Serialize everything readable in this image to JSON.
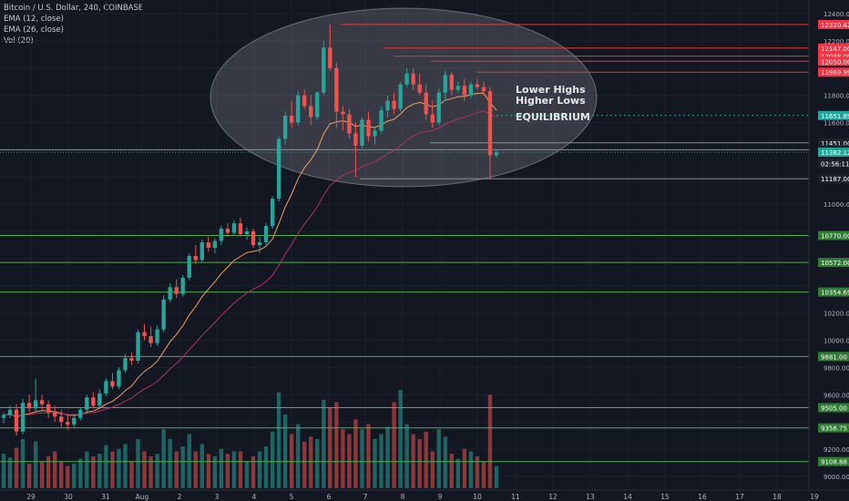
{
  "legend": {
    "symbol": "Bitcoin / U.S. Dollar, 240, COINBASE",
    "ema12": "EMA (12, close)",
    "ema26": "EMA (26, close)",
    "vol": "Vol (20)"
  },
  "chart_data": {
    "type": "candlestick",
    "title": "Bitcoin / U.S. Dollar, 240, COINBASE",
    "xlabel": "",
    "ylabel": "",
    "ylim": [
      8960,
      12440
    ],
    "x_ticks": [
      "29",
      "30",
      "31",
      "Aug",
      "2",
      "3",
      "4",
      "5",
      "6",
      "7",
      "8",
      "9",
      "10",
      "11",
      "12",
      "13",
      "14",
      "15",
      "16",
      "17",
      "18",
      "19"
    ],
    "y_ticks": [
      9000,
      9200,
      9400,
      9600,
      9800,
      10000,
      10200,
      10400,
      10600,
      10800,
      11000,
      11200,
      11400,
      11600,
      11800,
      12000,
      12200,
      12400
    ],
    "price_tags": [
      {
        "label": "12320.42",
        "value": 12320.42,
        "color": "#f23645"
      },
      {
        "label": "12147.00",
        "value": 12147.0,
        "color": "#f23645"
      },
      {
        "label": "12088.00",
        "value": 12088.0,
        "color": "#f23645"
      },
      {
        "label": "12050.00",
        "value": 12050.0,
        "color": "#f23645"
      },
      {
        "label": "11969.99",
        "value": 11969.99,
        "color": "#f23645"
      },
      {
        "label": "11651.89",
        "value": 11651.89,
        "color": "#26a69a"
      },
      {
        "label": "11451.00",
        "value": 11451.0,
        "color": "#1e222d"
      },
      {
        "label": "11400.00",
        "value": 11400.0,
        "color": "#1e222d"
      },
      {
        "label": "11382.12",
        "value": 11382.12,
        "color": "#26a69a"
      },
      {
        "label": "02:56:11",
        "value": 11300,
        "color": "#1e222d"
      },
      {
        "label": "11187.00",
        "value": 11187.0,
        "color": "#1e222d"
      },
      {
        "label": "10770.00",
        "value": 10770.0,
        "color": "#2e7d32"
      },
      {
        "label": "10572.00",
        "value": 10572.0,
        "color": "#2e7d32"
      },
      {
        "label": "10354.69",
        "value": 10354.69,
        "color": "#2e7d32"
      },
      {
        "label": "9881.00",
        "value": 9881.0,
        "color": "#2e7d32"
      },
      {
        "label": "9505.00",
        "value": 9505.0,
        "color": "#2e7d32"
      },
      {
        "label": "9356.75",
        "value": 9356.75,
        "color": "#2e7d32"
      },
      {
        "label": "9108.88",
        "value": 9108.88,
        "color": "#2e7d32"
      }
    ],
    "support_levels": [
      10770,
      10572,
      10354.69,
      9881,
      9505,
      9356.75,
      9108.88
    ],
    "annotations": {
      "line1": "Lower Highs",
      "line2": "Higher Lows",
      "line3": "EQUILIBRIUM"
    },
    "volume_scale_max": 100,
    "candles": [
      [
        9430,
        9470,
        9390,
        9450,
        28
      ],
      [
        9450,
        9520,
        9430,
        9490,
        25
      ],
      [
        9490,
        9530,
        9300,
        9330,
        33
      ],
      [
        9330,
        9570,
        9310,
        9540,
        40
      ],
      [
        9540,
        9600,
        9470,
        9500,
        20
      ],
      [
        9500,
        9720,
        9480,
        9560,
        38
      ],
      [
        9560,
        9600,
        9490,
        9530,
        22
      ],
      [
        9530,
        9560,
        9430,
        9470,
        26
      ],
      [
        9470,
        9520,
        9400,
        9440,
        30
      ],
      [
        9440,
        9490,
        9360,
        9400,
        22
      ],
      [
        9400,
        9460,
        9340,
        9380,
        18
      ],
      [
        9380,
        9460,
        9360,
        9430,
        20
      ],
      [
        9430,
        9510,
        9410,
        9490,
        24
      ],
      [
        9490,
        9600,
        9460,
        9580,
        30
      ],
      [
        9580,
        9620,
        9500,
        9520,
        26
      ],
      [
        9520,
        9640,
        9500,
        9610,
        28
      ],
      [
        9610,
        9720,
        9590,
        9700,
        35
      ],
      [
        9700,
        9760,
        9640,
        9660,
        30
      ],
      [
        9660,
        9800,
        9640,
        9780,
        32
      ],
      [
        9780,
        9900,
        9760,
        9870,
        36
      ],
      [
        9870,
        9910,
        9820,
        9850,
        22
      ],
      [
        9850,
        10080,
        9830,
        10060,
        40
      ],
      [
        10060,
        10120,
        10000,
        10030,
        30
      ],
      [
        10030,
        10100,
        9950,
        9980,
        26
      ],
      [
        9980,
        10110,
        9960,
        10080,
        28
      ],
      [
        10080,
        10330,
        10060,
        10300,
        48
      ],
      [
        10300,
        10420,
        10280,
        10390,
        40
      ],
      [
        10390,
        10450,
        10310,
        10340,
        30
      ],
      [
        10340,
        10480,
        10320,
        10460,
        34
      ],
      [
        10460,
        10640,
        10440,
        10620,
        44
      ],
      [
        10620,
        10700,
        10560,
        10590,
        30
      ],
      [
        10590,
        10740,
        10570,
        10720,
        36
      ],
      [
        10720,
        10760,
        10650,
        10680,
        28
      ],
      [
        10680,
        10750,
        10640,
        10730,
        26
      ],
      [
        10730,
        10840,
        10700,
        10820,
        32
      ],
      [
        10820,
        10860,
        10760,
        10790,
        28
      ],
      [
        10790,
        10880,
        10770,
        10860,
        30
      ],
      [
        10860,
        10900,
        10760,
        10780,
        30
      ],
      [
        10780,
        10830,
        10740,
        10800,
        22
      ],
      [
        10800,
        10820,
        10680,
        10700,
        26
      ],
      [
        10700,
        10760,
        10640,
        10720,
        30
      ],
      [
        10720,
        10860,
        10700,
        10840,
        34
      ],
      [
        10840,
        11060,
        10820,
        11040,
        46
      ],
      [
        11040,
        11500,
        11020,
        11480,
        78
      ],
      [
        11480,
        11680,
        11440,
        11650,
        60
      ],
      [
        11650,
        11760,
        11560,
        11600,
        44
      ],
      [
        11600,
        11830,
        11580,
        11800,
        52
      ],
      [
        11800,
        11840,
        11700,
        11720,
        38
      ],
      [
        11720,
        11800,
        11580,
        11640,
        42
      ],
      [
        11640,
        11830,
        11620,
        11820,
        40
      ],
      [
        11820,
        12200,
        11800,
        12150,
        72
      ],
      [
        12150,
        12320,
        11980,
        12000,
        66
      ],
      [
        12000,
        12040,
        11560,
        11680,
        70
      ],
      [
        11680,
        11720,
        11540,
        11660,
        48
      ],
      [
        11660,
        11700,
        11480,
        11520,
        44
      ],
      [
        11520,
        11600,
        11200,
        11430,
        56
      ],
      [
        11430,
        11640,
        11410,
        11620,
        48
      ],
      [
        11620,
        11680,
        11460,
        11500,
        52
      ],
      [
        11500,
        11560,
        11440,
        11540,
        40
      ],
      [
        11540,
        11720,
        11520,
        11690,
        44
      ],
      [
        11690,
        11800,
        11640,
        11760,
        50
      ],
      [
        11760,
        11820,
        11660,
        11700,
        70
      ],
      [
        11700,
        11900,
        11680,
        11880,
        80
      ],
      [
        11880,
        12000,
        11860,
        11960,
        52
      ],
      [
        11960,
        12000,
        11840,
        11880,
        44
      ],
      [
        11880,
        11960,
        11800,
        11820,
        40
      ],
      [
        11820,
        11880,
        11620,
        11660,
        46
      ],
      [
        11660,
        11760,
        11560,
        11600,
        30
      ],
      [
        11600,
        11850,
        11580,
        11820,
        48
      ],
      [
        11820,
        11980,
        11760,
        11950,
        42
      ],
      [
        11950,
        11970,
        11800,
        11840,
        28
      ],
      [
        11840,
        11900,
        11820,
        11870,
        24
      ],
      [
        11870,
        11920,
        11760,
        11800,
        32
      ],
      [
        11800,
        11900,
        11780,
        11880,
        30
      ],
      [
        11880,
        11920,
        11840,
        11860,
        26
      ],
      [
        11860,
        11900,
        11800,
        11830,
        22
      ],
      [
        11830,
        11860,
        11190,
        11360,
        76
      ],
      [
        11360,
        11400,
        11340,
        11382,
        18
      ]
    ]
  }
}
